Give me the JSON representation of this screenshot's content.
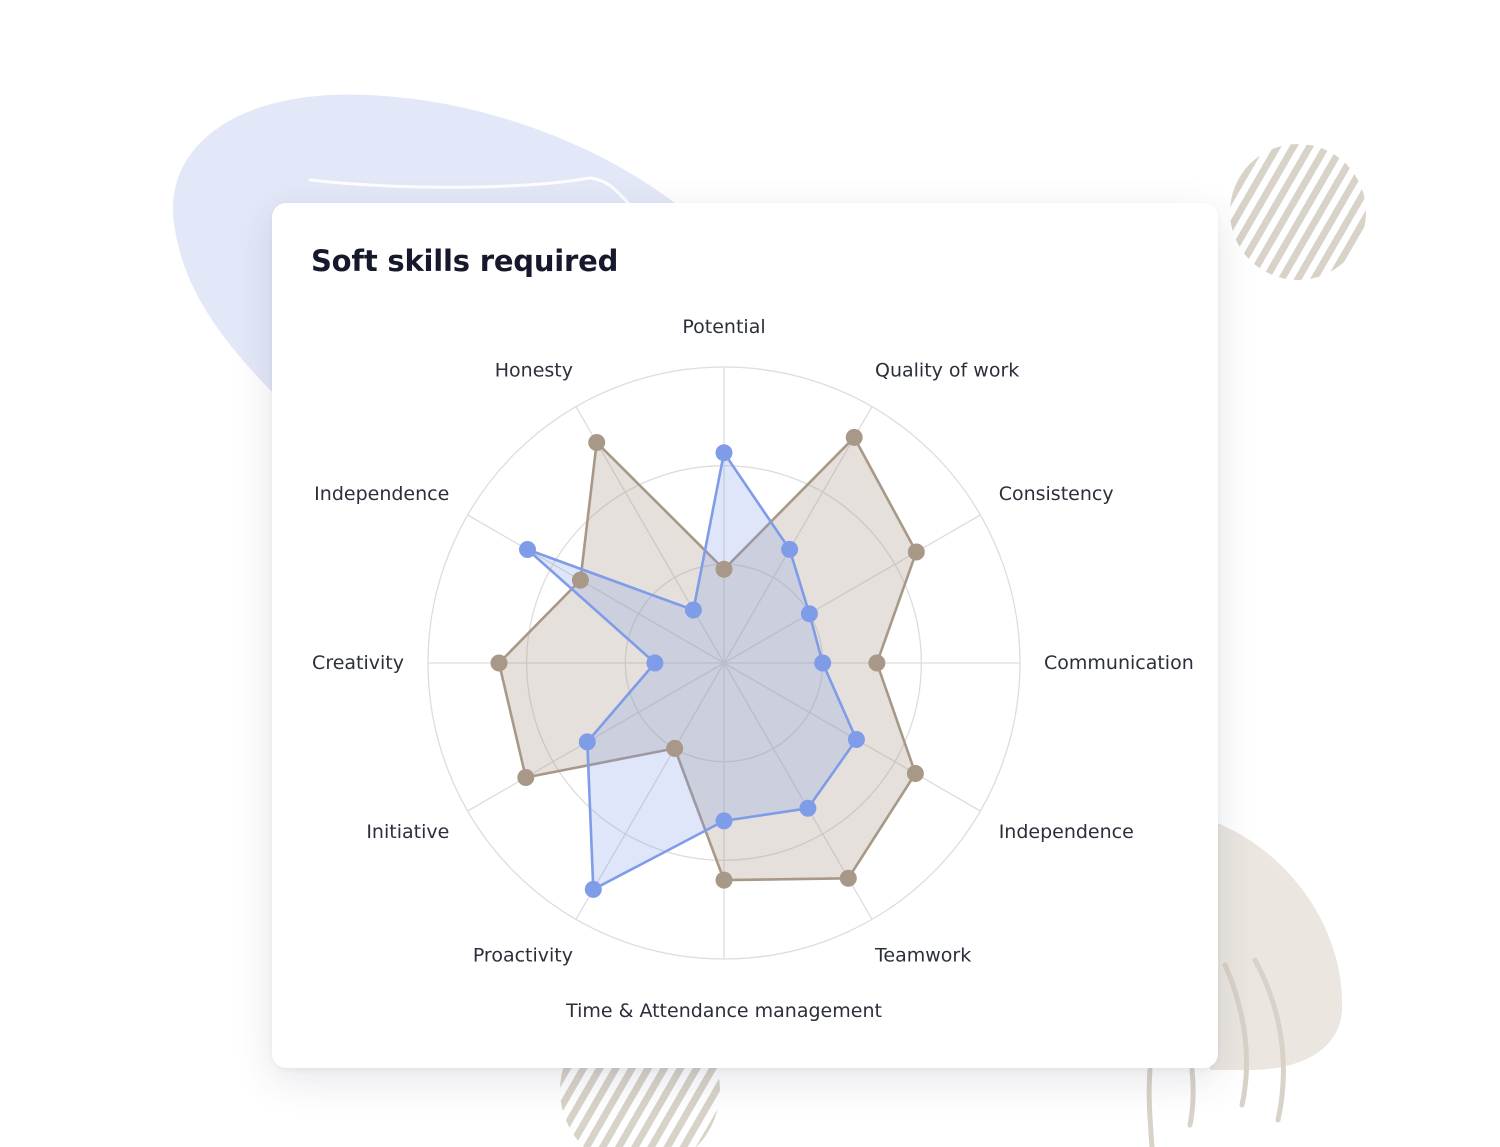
{
  "card": {
    "title": "Soft skills required"
  },
  "colors": {
    "series_a": "#7f9ce8",
    "series_b": "#a89888",
    "grid": "#dddddd",
    "decor_blob": "#e3e8f8",
    "decor_beige": "#ebe6df",
    "decor_stripes": "#d8d2c8"
  },
  "chart_data": {
    "type": "radar",
    "title": "Soft skills required",
    "axes": [
      "Potential",
      "Quality of work",
      "Consistency",
      "Communication",
      "Independence",
      "Teamwork",
      "Time & Attendance management",
      "Proactivity",
      "Initiative",
      "Creativity",
      "Independence",
      "Honesty"
    ],
    "rlim": [
      0,
      3
    ],
    "grid_levels": [
      1,
      2,
      3
    ],
    "grid": true,
    "series": [
      {
        "color": "#7f9ce8",
        "values": [
          2.13,
          1.33,
          1.0,
          1.0,
          1.55,
          1.7,
          1.6,
          2.65,
          1.6,
          0.7,
          2.3,
          0.62
        ]
      },
      {
        "color": "#a89888",
        "values": [
          0.95,
          2.64,
          2.25,
          1.55,
          2.24,
          2.52,
          2.2,
          1.0,
          2.32,
          2.28,
          1.68,
          2.58
        ]
      }
    ]
  }
}
